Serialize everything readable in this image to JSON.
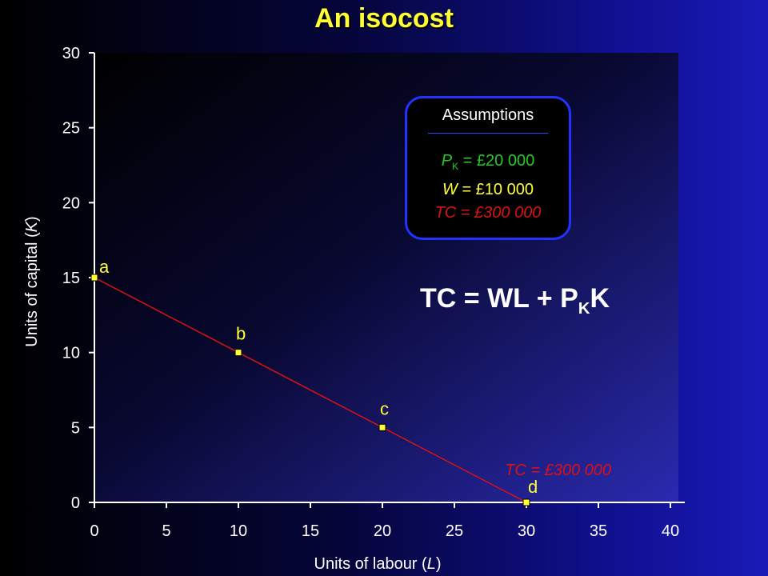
{
  "slide": {
    "title": "An isocost"
  },
  "chart_data": {
    "type": "line",
    "xlabel_prefix": "Units of labour (",
    "xlabel_var": "L",
    "xlabel_suffix": ")",
    "ylabel_prefix": "Units of capital (",
    "ylabel_var": "K",
    "ylabel_suffix": ")",
    "xlim": [
      0,
      40
    ],
    "ylim": [
      0,
      30
    ],
    "x_ticks": [
      0,
      5,
      10,
      15,
      20,
      25,
      30,
      35,
      40
    ],
    "y_ticks": [
      0,
      5,
      10,
      15,
      20,
      25,
      30
    ],
    "grid": false,
    "series": [
      {
        "label": "TC = £300 000",
        "color": "#dd1111",
        "x": [
          0,
          10,
          20,
          30
        ],
        "y": [
          15,
          10,
          5,
          0
        ],
        "point_labels": [
          "a",
          "b",
          "c",
          "d"
        ]
      }
    ]
  },
  "assumptions": {
    "title": "Assumptions",
    "pk_var": "P",
    "pk_sub": "K",
    "pk_value": " = £20 000",
    "w_var": "W",
    "w_value": " = £10 000",
    "tc_text": "TC = £300 000"
  },
  "formula": {
    "lhs": "TC = WL + P",
    "sub": "K",
    "rhs": "K"
  },
  "colors": {
    "line": "#dd1111",
    "points": "#ffff33",
    "title": "#ffff33",
    "pk": "#22cc22",
    "w": "#ffff33",
    "tc": "#dd1111"
  }
}
